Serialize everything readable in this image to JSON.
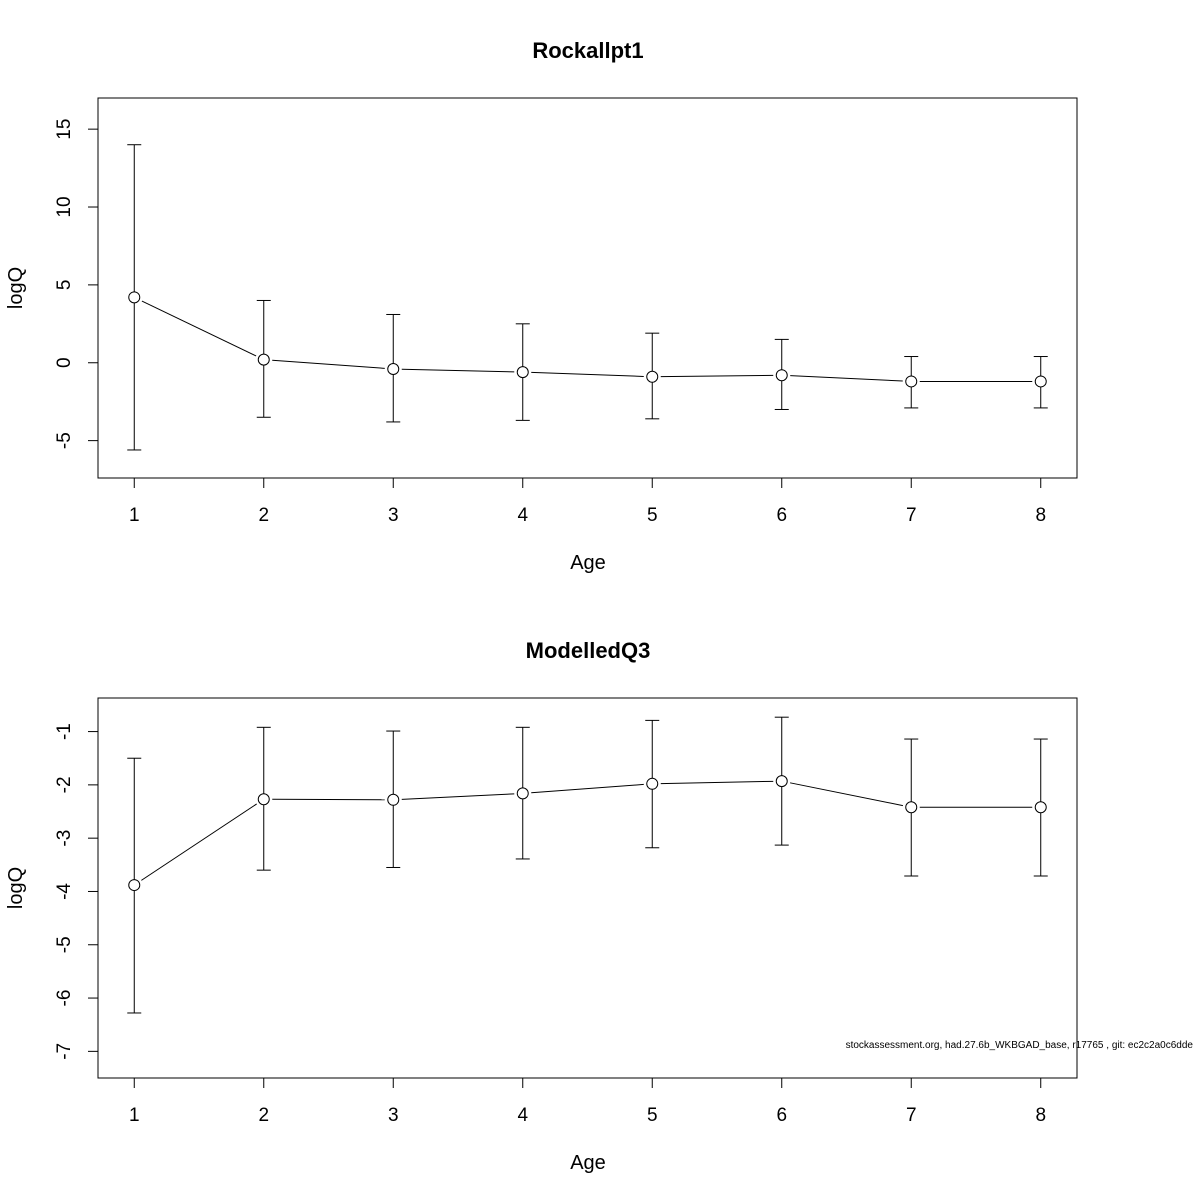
{
  "chart_data": [
    {
      "type": "line",
      "title": "Rockallpt1",
      "xlabel": "Age",
      "ylabel": "logQ",
      "x": [
        1,
        2,
        3,
        4,
        5,
        6,
        7,
        8
      ],
      "x_tick_labels": [
        "1",
        "2",
        "3",
        "4",
        "5",
        "6",
        "7",
        "8"
      ],
      "y_ticks": [
        -5,
        0,
        5,
        10,
        15
      ],
      "y_tick_labels": [
        "-5",
        "0",
        "5",
        "10",
        "15"
      ],
      "xlim": [
        0.72,
        8.28
      ],
      "ylim": [
        -7.4,
        17.0
      ],
      "series": [
        {
          "values": [
            4.2,
            0.2,
            -0.4,
            -0.6,
            -0.9,
            -0.8,
            -1.2,
            -1.2
          ],
          "lower": [
            -5.6,
            -3.5,
            -3.8,
            -3.7,
            -3.6,
            -3.0,
            -2.9,
            -2.9
          ],
          "upper": [
            14.0,
            4.0,
            3.1,
            2.5,
            1.9,
            1.5,
            0.4,
            0.4
          ]
        }
      ],
      "marker": "open-circle",
      "error_bars": true,
      "grid": false
    },
    {
      "type": "line",
      "title": "ModelledQ3",
      "xlabel": "Age",
      "ylabel": "logQ",
      "x": [
        1,
        2,
        3,
        4,
        5,
        6,
        7,
        8
      ],
      "x_tick_labels": [
        "1",
        "2",
        "3",
        "4",
        "5",
        "6",
        "7",
        "8"
      ],
      "y_ticks": [
        -7,
        -6,
        -5,
        -4,
        -3,
        -2,
        -1
      ],
      "y_tick_labels": [
        "-7",
        "-6",
        "-5",
        "-4",
        "-3",
        "-2",
        "-1"
      ],
      "xlim": [
        0.72,
        8.28
      ],
      "ylim": [
        -7.5,
        -0.37
      ],
      "series": [
        {
          "values": [
            -3.88,
            -2.27,
            -2.28,
            -2.16,
            -1.98,
            -1.93,
            -2.42,
            -2.42
          ],
          "lower": [
            -6.28,
            -3.6,
            -3.55,
            -3.39,
            -3.18,
            -3.13,
            -3.71,
            -3.71
          ],
          "upper": [
            -1.5,
            -0.92,
            -0.99,
            -0.92,
            -0.79,
            -0.73,
            -1.14,
            -1.14
          ]
        }
      ],
      "marker": "open-circle",
      "error_bars": true,
      "grid": false
    }
  ],
  "footer": "stockassessment.org, had.27.6b_WKBGAD_base, r17765 , git: ec2c2a0c6dde"
}
